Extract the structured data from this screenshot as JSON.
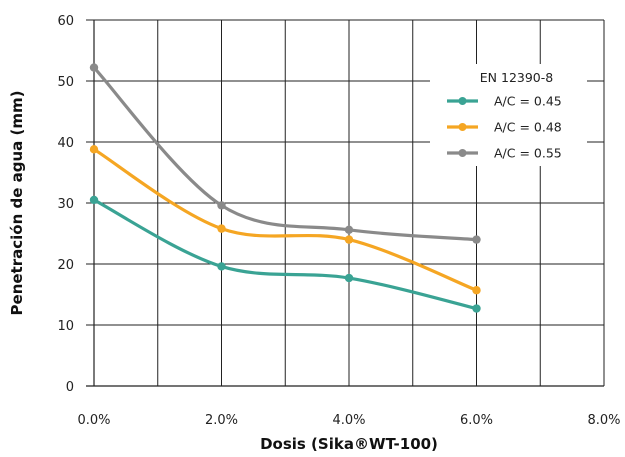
{
  "chart_data": {
    "type": "line",
    "xlabel": "Dosis (Sika®WT-100)",
    "ylabel": "Penetración de agua (mm)",
    "xlim": [
      0,
      8
    ],
    "ylim": [
      0,
      60
    ],
    "x_ticks": [
      0,
      2,
      4,
      6,
      8
    ],
    "x_tick_labels": [
      "0.0%",
      "2.0%",
      "4.0%",
      "6.0%",
      "8.0%"
    ],
    "y_ticks": [
      0,
      10,
      20,
      30,
      40,
      50,
      60
    ],
    "y_tick_labels": [
      "0",
      "10",
      "20",
      "30",
      "40",
      "50",
      "60"
    ],
    "grid": true,
    "legend": {
      "title": "EN 12390-8",
      "placement": "top-right"
    },
    "series": [
      {
        "name": "A/C = 0.45",
        "color": "#3aa394",
        "x": [
          0,
          2,
          4,
          6
        ],
        "y": [
          30.5,
          19.6,
          17.7,
          12.7
        ]
      },
      {
        "name": "A/C = 0.48",
        "color": "#f5a623",
        "x": [
          0,
          2,
          4,
          6
        ],
        "y": [
          38.8,
          25.8,
          24.0,
          15.7
        ]
      },
      {
        "name": "A/C = 0.55",
        "color": "#8a8a8a",
        "x": [
          0,
          2,
          4,
          6
        ],
        "y": [
          52.2,
          29.6,
          25.6,
          24.0
        ]
      }
    ]
  }
}
